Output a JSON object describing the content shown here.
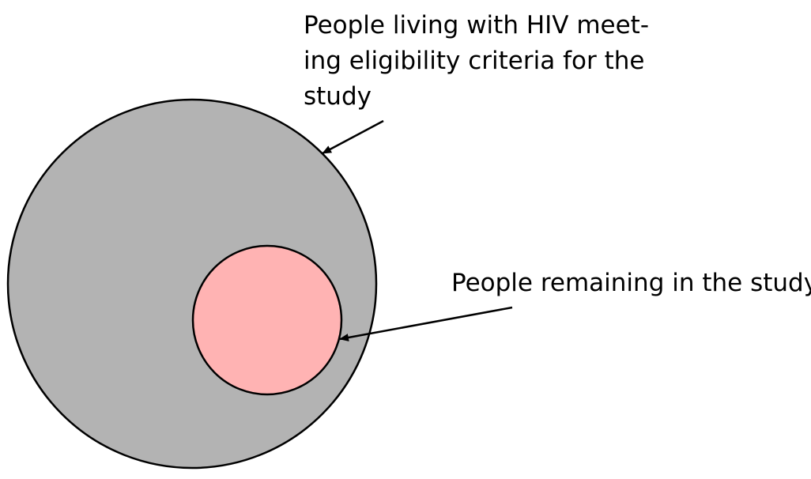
{
  "outer_set": {
    "label_lines": [
      "People living with HIV meet-",
      "ing eligibility criteria for the",
      "study"
    ],
    "fill": "#b3b3b3"
  },
  "inner_set": {
    "label": "People remaining in the study",
    "fill": "#ffb3b3"
  },
  "stroke": "#000000"
}
